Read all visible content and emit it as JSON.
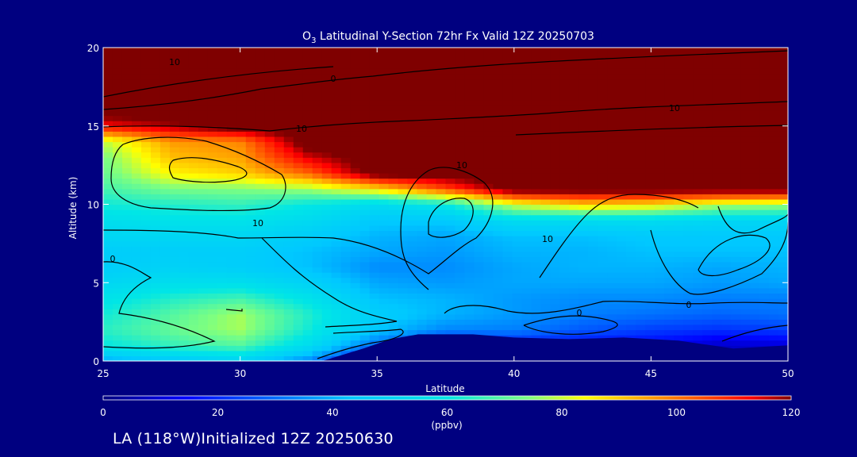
{
  "chart_data": {
    "type": "heatmap",
    "title": {
      "prefix": "O",
      "subscript": "3",
      "rest": " Latitudinal Y-Section 72hr  Fx Valid 12Z 20250703"
    },
    "xlabel": "Latitude",
    "ylabel": "Altitude (km)",
    "xlim": [
      25,
      50
    ],
    "ylim": [
      0,
      20
    ],
    "x_ticks": [
      25,
      30,
      35,
      40,
      45,
      50
    ],
    "y_ticks": [
      0,
      5,
      10,
      15,
      20
    ],
    "colorbar": {
      "label": "(ppbv)",
      "range": [
        0,
        120
      ],
      "ticks": [
        0,
        20,
        40,
        60,
        80,
        100,
        120
      ]
    },
    "field_lat": [
      25,
      27.5,
      30,
      32.5,
      35,
      37.5,
      40,
      42.5,
      45,
      47.5,
      50
    ],
    "field_alt": [
      0,
      1,
      2,
      3,
      4,
      5,
      6,
      7,
      8,
      9,
      10,
      11,
      12,
      13,
      14,
      15,
      16,
      20
    ],
    "ozone_ppbv": [
      [
        40,
        45,
        50,
        35,
        10,
        5,
        10,
        10,
        10,
        8,
        15
      ],
      [
        60,
        66,
        70,
        55,
        30,
        14,
        18,
        15,
        14,
        8,
        10
      ],
      [
        65,
        72,
        78,
        62,
        45,
        35,
        34,
        28,
        24,
        22,
        24
      ],
      [
        62,
        70,
        78,
        64,
        48,
        42,
        38,
        34,
        32,
        30,
        32
      ],
      [
        58,
        64,
        68,
        58,
        44,
        42,
        38,
        36,
        36,
        34,
        34
      ],
      [
        52,
        56,
        56,
        50,
        40,
        38,
        40,
        40,
        40,
        38,
        40
      ],
      [
        48,
        50,
        48,
        44,
        36,
        36,
        40,
        42,
        42,
        40,
        42
      ],
      [
        48,
        48,
        48,
        44,
        40,
        38,
        42,
        42,
        44,
        44,
        44
      ],
      [
        52,
        52,
        52,
        48,
        42,
        40,
        44,
        44,
        46,
        46,
        46
      ],
      [
        56,
        58,
        58,
        54,
        46,
        46,
        55,
        55,
        55,
        52,
        52
      ],
      [
        62,
        64,
        66,
        60,
        54,
        60,
        82,
        90,
        88,
        80,
        78
      ],
      [
        68,
        74,
        75,
        78,
        88,
        105,
        125,
        125,
        125,
        125,
        125
      ],
      [
        72,
        86,
        90,
        102,
        125,
        125,
        125,
        125,
        125,
        125,
        125
      ],
      [
        74,
        92,
        95,
        115,
        125,
        125,
        125,
        125,
        125,
        125,
        125
      ],
      [
        80,
        96,
        98,
        125,
        125,
        125,
        125,
        125,
        125,
        125,
        125
      ],
      [
        112,
        118,
        125,
        125,
        125,
        125,
        125,
        125,
        125,
        125,
        125
      ],
      [
        125,
        125,
        125,
        125,
        125,
        125,
        125,
        125,
        125,
        125,
        125
      ],
      [
        125,
        125,
        125,
        125,
        125,
        125,
        125,
        125,
        125,
        125,
        125
      ]
    ],
    "terrain_profile": [
      [
        25,
        0
      ],
      [
        33,
        0
      ],
      [
        34.5,
        0.8
      ],
      [
        35.5,
        1.4
      ],
      [
        36.5,
        1.7
      ],
      [
        38.5,
        1.7
      ],
      [
        40,
        1.5
      ],
      [
        42,
        1.4
      ],
      [
        44,
        1.5
      ],
      [
        46,
        1.3
      ],
      [
        48,
        0.8
      ],
      [
        50,
        1.0
      ]
    ],
    "contour_labels": [
      "10",
      "0",
      "10",
      "10",
      "0",
      "10",
      "0",
      "10",
      "0",
      "10"
    ]
  },
  "footer": {
    "text": "LA (118°W)Initialized 12Z 20250630"
  }
}
